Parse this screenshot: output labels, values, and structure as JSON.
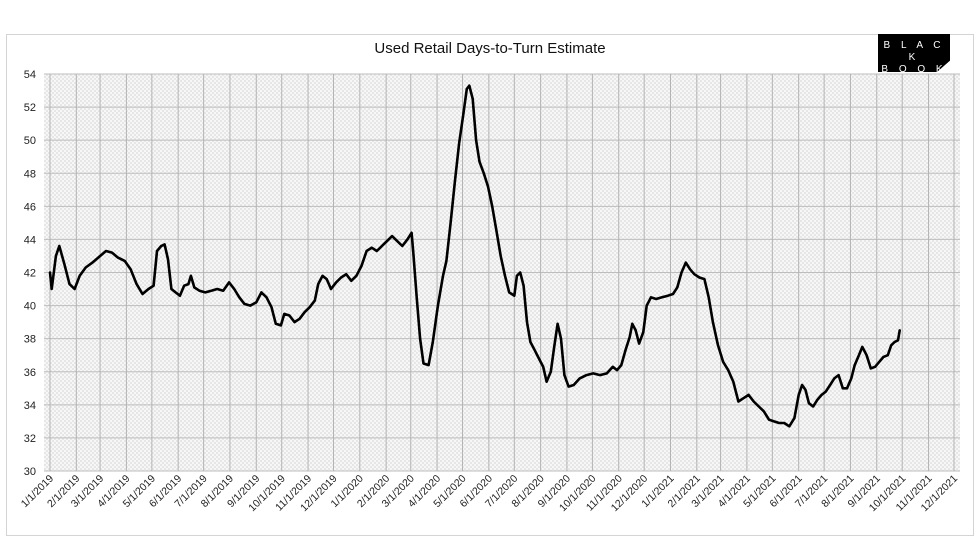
{
  "chart_data": {
    "type": "line",
    "title": "Used Retail Days-to-Turn Estimate",
    "logo_text": [
      "B L A C K",
      "B O O K"
    ],
    "xlabel": "",
    "ylabel": "",
    "ylim": [
      30,
      54
    ],
    "yticks": [
      30,
      32,
      34,
      36,
      38,
      40,
      42,
      44,
      46,
      48,
      50,
      52,
      54
    ],
    "x_tick_labels": [
      "1/1/2019",
      "2/1/2019",
      "3/1/2019",
      "4/1/2019",
      "5/1/2019",
      "6/1/2019",
      "7/1/2019",
      "8/1/2019",
      "9/1/2019",
      "10/1/2019",
      "11/1/2019",
      "12/1/2019",
      "1/1/2020",
      "2/1/2020",
      "3/1/2020",
      "4/1/2020",
      "5/1/2020",
      "6/1/2020",
      "7/1/2020",
      "8/1/2020",
      "9/1/2020",
      "10/1/2020",
      "11/1/2020",
      "12/1/2020",
      "1/1/2021",
      "2/1/2021",
      "3/1/2021",
      "4/1/2021",
      "5/1/2021",
      "6/1/2021",
      "7/1/2021",
      "8/1/2021",
      "9/1/2021",
      "10/1/2021",
      "11/1/2021",
      "12/1/2021"
    ],
    "grid": true,
    "line_color": "#000000",
    "series": [
      {
        "values": [
          {
            "x": "2019-01-01",
            "y": 42.0
          },
          {
            "x": "2019-01-03",
            "y": 41.0
          },
          {
            "x": "2019-01-08",
            "y": 43.0
          },
          {
            "x": "2019-01-12",
            "y": 43.6
          },
          {
            "x": "2019-01-18",
            "y": 42.5
          },
          {
            "x": "2019-01-24",
            "y": 41.3
          },
          {
            "x": "2019-01-30",
            "y": 41.0
          },
          {
            "x": "2019-02-05",
            "y": 41.8
          },
          {
            "x": "2019-02-12",
            "y": 42.3
          },
          {
            "x": "2019-02-20",
            "y": 42.6
          },
          {
            "x": "2019-03-01",
            "y": 43.0
          },
          {
            "x": "2019-03-08",
            "y": 43.3
          },
          {
            "x": "2019-03-15",
            "y": 43.2
          },
          {
            "x": "2019-03-22",
            "y": 42.9
          },
          {
            "x": "2019-03-30",
            "y": 42.7
          },
          {
            "x": "2019-04-06",
            "y": 42.2
          },
          {
            "x": "2019-04-13",
            "y": 41.3
          },
          {
            "x": "2019-04-20",
            "y": 40.7
          },
          {
            "x": "2019-04-27",
            "y": 41.0
          },
          {
            "x": "2019-05-03",
            "y": 41.2
          },
          {
            "x": "2019-05-07",
            "y": 43.3
          },
          {
            "x": "2019-05-12",
            "y": 43.6
          },
          {
            "x": "2019-05-16",
            "y": 43.7
          },
          {
            "x": "2019-05-20",
            "y": 42.8
          },
          {
            "x": "2019-05-24",
            "y": 41.0
          },
          {
            "x": "2019-05-29",
            "y": 40.8
          },
          {
            "x": "2019-06-03",
            "y": 40.6
          },
          {
            "x": "2019-06-08",
            "y": 41.2
          },
          {
            "x": "2019-06-13",
            "y": 41.3
          },
          {
            "x": "2019-06-16",
            "y": 41.8
          },
          {
            "x": "2019-06-20",
            "y": 41.1
          },
          {
            "x": "2019-06-26",
            "y": 40.9
          },
          {
            "x": "2019-07-03",
            "y": 40.8
          },
          {
            "x": "2019-07-10",
            "y": 40.9
          },
          {
            "x": "2019-07-17",
            "y": 41.0
          },
          {
            "x": "2019-07-24",
            "y": 40.9
          },
          {
            "x": "2019-07-31",
            "y": 41.4
          },
          {
            "x": "2019-08-06",
            "y": 41.0
          },
          {
            "x": "2019-08-12",
            "y": 40.5
          },
          {
            "x": "2019-08-18",
            "y": 40.1
          },
          {
            "x": "2019-08-25",
            "y": 40.0
          },
          {
            "x": "2019-09-01",
            "y": 40.2
          },
          {
            "x": "2019-09-07",
            "y": 40.8
          },
          {
            "x": "2019-09-13",
            "y": 40.5
          },
          {
            "x": "2019-09-19",
            "y": 39.9
          },
          {
            "x": "2019-09-24",
            "y": 38.9
          },
          {
            "x": "2019-09-30",
            "y": 38.8
          },
          {
            "x": "2019-10-04",
            "y": 39.5
          },
          {
            "x": "2019-10-10",
            "y": 39.4
          },
          {
            "x": "2019-10-16",
            "y": 39.0
          },
          {
            "x": "2019-10-22",
            "y": 39.2
          },
          {
            "x": "2019-10-28",
            "y": 39.6
          },
          {
            "x": "2019-11-03",
            "y": 39.9
          },
          {
            "x": "2019-11-09",
            "y": 40.3
          },
          {
            "x": "2019-11-13",
            "y": 41.3
          },
          {
            "x": "2019-11-18",
            "y": 41.8
          },
          {
            "x": "2019-11-23",
            "y": 41.6
          },
          {
            "x": "2019-11-28",
            "y": 41.0
          },
          {
            "x": "2019-12-04",
            "y": 41.4
          },
          {
            "x": "2019-12-10",
            "y": 41.7
          },
          {
            "x": "2019-12-16",
            "y": 41.9
          },
          {
            "x": "2019-12-22",
            "y": 41.5
          },
          {
            "x": "2019-12-28",
            "y": 41.8
          },
          {
            "x": "2020-01-03",
            "y": 42.4
          },
          {
            "x": "2020-01-09",
            "y": 43.3
          },
          {
            "x": "2020-01-15",
            "y": 43.5
          },
          {
            "x": "2020-01-21",
            "y": 43.3
          },
          {
            "x": "2020-01-27",
            "y": 43.6
          },
          {
            "x": "2020-02-02",
            "y": 43.9
          },
          {
            "x": "2020-02-08",
            "y": 44.2
          },
          {
            "x": "2020-02-14",
            "y": 43.9
          },
          {
            "x": "2020-02-20",
            "y": 43.6
          },
          {
            "x": "2020-02-26",
            "y": 44.0
          },
          {
            "x": "2020-03-02",
            "y": 44.4
          },
          {
            "x": "2020-03-04",
            "y": 43.2
          },
          {
            "x": "2020-03-08",
            "y": 40.5
          },
          {
            "x": "2020-03-12",
            "y": 38.0
          },
          {
            "x": "2020-03-16",
            "y": 36.5
          },
          {
            "x": "2020-03-22",
            "y": 36.4
          },
          {
            "x": "2020-03-27",
            "y": 37.8
          },
          {
            "x": "2020-04-02",
            "y": 40.0
          },
          {
            "x": "2020-04-08",
            "y": 41.8
          },
          {
            "x": "2020-04-12",
            "y": 42.7
          },
          {
            "x": "2020-04-17",
            "y": 45.0
          },
          {
            "x": "2020-04-22",
            "y": 47.5
          },
          {
            "x": "2020-04-27",
            "y": 49.8
          },
          {
            "x": "2020-05-02",
            "y": 51.6
          },
          {
            "x": "2020-05-06",
            "y": 53.1
          },
          {
            "x": "2020-05-09",
            "y": 53.3
          },
          {
            "x": "2020-05-13",
            "y": 52.5
          },
          {
            "x": "2020-05-17",
            "y": 50.0
          },
          {
            "x": "2020-05-21",
            "y": 48.7
          },
          {
            "x": "2020-05-26",
            "y": 48.0
          },
          {
            "x": "2020-05-31",
            "y": 47.2
          },
          {
            "x": "2020-06-05",
            "y": 46.0
          },
          {
            "x": "2020-06-10",
            "y": 44.5
          },
          {
            "x": "2020-06-15",
            "y": 43.0
          },
          {
            "x": "2020-06-20",
            "y": 41.8
          },
          {
            "x": "2020-06-25",
            "y": 40.8
          },
          {
            "x": "2020-07-01",
            "y": 40.6
          },
          {
            "x": "2020-07-04",
            "y": 41.8
          },
          {
            "x": "2020-07-08",
            "y": 42.0
          },
          {
            "x": "2020-07-12",
            "y": 41.2
          },
          {
            "x": "2020-07-16",
            "y": 39.0
          },
          {
            "x": "2020-07-20",
            "y": 37.8
          },
          {
            "x": "2020-07-25",
            "y": 37.3
          },
          {
            "x": "2020-07-30",
            "y": 36.8
          },
          {
            "x": "2020-08-04",
            "y": 36.3
          },
          {
            "x": "2020-08-08",
            "y": 35.4
          },
          {
            "x": "2020-08-13",
            "y": 36.0
          },
          {
            "x": "2020-08-17",
            "y": 37.5
          },
          {
            "x": "2020-08-21",
            "y": 38.9
          },
          {
            "x": "2020-08-25",
            "y": 38.0
          },
          {
            "x": "2020-08-29",
            "y": 35.8
          },
          {
            "x": "2020-09-03",
            "y": 35.1
          },
          {
            "x": "2020-09-09",
            "y": 35.2
          },
          {
            "x": "2020-09-16",
            "y": 35.6
          },
          {
            "x": "2020-09-24",
            "y": 35.8
          },
          {
            "x": "2020-10-02",
            "y": 35.9
          },
          {
            "x": "2020-10-10",
            "y": 35.8
          },
          {
            "x": "2020-10-18",
            "y": 35.9
          },
          {
            "x": "2020-10-25",
            "y": 36.3
          },
          {
            "x": "2020-10-30",
            "y": 36.1
          },
          {
            "x": "2020-11-04",
            "y": 36.4
          },
          {
            "x": "2020-11-09",
            "y": 37.3
          },
          {
            "x": "2020-11-14",
            "y": 38.1
          },
          {
            "x": "2020-11-17",
            "y": 38.9
          },
          {
            "x": "2020-11-21",
            "y": 38.5
          },
          {
            "x": "2020-11-25",
            "y": 37.7
          },
          {
            "x": "2020-11-30",
            "y": 38.4
          },
          {
            "x": "2020-12-04",
            "y": 40.0
          },
          {
            "x": "2020-12-09",
            "y": 40.5
          },
          {
            "x": "2020-12-15",
            "y": 40.4
          },
          {
            "x": "2020-12-22",
            "y": 40.5
          },
          {
            "x": "2020-12-29",
            "y": 40.6
          },
          {
            "x": "2021-01-04",
            "y": 40.7
          },
          {
            "x": "2021-01-09",
            "y": 41.1
          },
          {
            "x": "2021-01-14",
            "y": 42.0
          },
          {
            "x": "2021-01-19",
            "y": 42.6
          },
          {
            "x": "2021-01-24",
            "y": 42.2
          },
          {
            "x": "2021-01-29",
            "y": 41.9
          },
          {
            "x": "2021-02-04",
            "y": 41.7
          },
          {
            "x": "2021-02-10",
            "y": 41.6
          },
          {
            "x": "2021-02-15",
            "y": 40.5
          },
          {
            "x": "2021-02-20",
            "y": 39.0
          },
          {
            "x": "2021-02-26",
            "y": 37.6
          },
          {
            "x": "2021-03-04",
            "y": 36.6
          },
          {
            "x": "2021-03-10",
            "y": 36.1
          },
          {
            "x": "2021-03-16",
            "y": 35.4
          },
          {
            "x": "2021-03-22",
            "y": 34.2
          },
          {
            "x": "2021-03-28",
            "y": 34.4
          },
          {
            "x": "2021-04-03",
            "y": 34.6
          },
          {
            "x": "2021-04-09",
            "y": 34.2
          },
          {
            "x": "2021-04-15",
            "y": 33.9
          },
          {
            "x": "2021-04-21",
            "y": 33.6
          },
          {
            "x": "2021-04-27",
            "y": 33.1
          },
          {
            "x": "2021-05-03",
            "y": 33.0
          },
          {
            "x": "2021-05-09",
            "y": 32.9
          },
          {
            "x": "2021-05-15",
            "y": 32.9
          },
          {
            "x": "2021-05-21",
            "y": 32.7
          },
          {
            "x": "2021-05-27",
            "y": 33.2
          },
          {
            "x": "2021-06-01",
            "y": 34.6
          },
          {
            "x": "2021-06-05",
            "y": 35.2
          },
          {
            "x": "2021-06-09",
            "y": 34.9
          },
          {
            "x": "2021-06-13",
            "y": 34.1
          },
          {
            "x": "2021-06-18",
            "y": 33.9
          },
          {
            "x": "2021-06-23",
            "y": 34.3
          },
          {
            "x": "2021-06-28",
            "y": 34.6
          },
          {
            "x": "2021-07-03",
            "y": 34.8
          },
          {
            "x": "2021-07-08",
            "y": 35.2
          },
          {
            "x": "2021-07-13",
            "y": 35.6
          },
          {
            "x": "2021-07-18",
            "y": 35.8
          },
          {
            "x": "2021-07-23",
            "y": 35.0
          },
          {
            "x": "2021-07-28",
            "y": 35.0
          },
          {
            "x": "2021-08-02",
            "y": 35.6
          },
          {
            "x": "2021-08-06",
            "y": 36.4
          },
          {
            "x": "2021-08-11",
            "y": 37.0
          },
          {
            "x": "2021-08-15",
            "y": 37.5
          },
          {
            "x": "2021-08-20",
            "y": 37.0
          },
          {
            "x": "2021-08-25",
            "y": 36.2
          },
          {
            "x": "2021-08-30",
            "y": 36.3
          },
          {
            "x": "2021-09-04",
            "y": 36.6
          },
          {
            "x": "2021-09-09",
            "y": 36.9
          },
          {
            "x": "2021-09-14",
            "y": 37.0
          },
          {
            "x": "2021-09-18",
            "y": 37.6
          },
          {
            "x": "2021-09-22",
            "y": 37.8
          },
          {
            "x": "2021-09-26",
            "y": 37.9
          },
          {
            "x": "2021-09-28",
            "y": 38.5
          }
        ]
      }
    ]
  }
}
